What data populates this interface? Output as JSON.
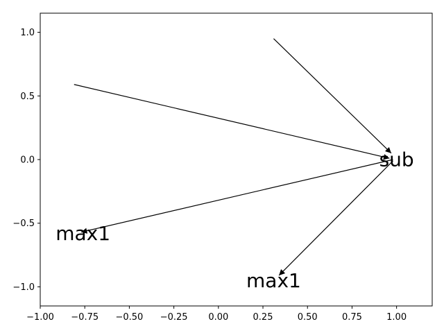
{
  "chart_data": {
    "type": "scatter",
    "xlim": [
      -1.0,
      1.2
    ],
    "ylim": [
      -1.15,
      1.15
    ],
    "x_ticks": [
      -1.0,
      -0.75,
      -0.5,
      -0.25,
      0.0,
      0.25,
      0.5,
      0.75,
      1.0
    ],
    "x_tick_labels": [
      "−1.00",
      "−0.75",
      "−0.50",
      "−0.25",
      "0.00",
      "0.25",
      "0.50",
      "0.75",
      "1.00"
    ],
    "y_ticks": [
      1.0,
      0.5,
      0.0,
      -0.5,
      -1.0
    ],
    "y_tick_labels": [
      "1.0",
      "0.5",
      "0.0",
      "−0.5",
      "−1.0"
    ],
    "grid": false,
    "nodes": [
      {
        "id": "sub",
        "label": "sub",
        "x": 1.0,
        "y": 0.0
      },
      {
        "id": "max1_a",
        "label": "max1",
        "x": -0.76,
        "y": -0.58
      },
      {
        "id": "max1_b",
        "label": "max1",
        "x": 0.31,
        "y": -0.95
      },
      {
        "id": "unlabeled_a",
        "label": "",
        "x": -0.81,
        "y": 0.59
      },
      {
        "id": "unlabeled_b",
        "label": "",
        "x": 0.31,
        "y": 0.95
      }
    ],
    "edges": [
      {
        "from": [
          -0.81,
          0.59
        ],
        "to": [
          0.96,
          0.01
        ]
      },
      {
        "from": [
          0.31,
          0.95
        ],
        "to": [
          0.97,
          0.05
        ]
      },
      {
        "from": [
          0.98,
          0.0
        ],
        "to": [
          -0.77,
          -0.57
        ]
      },
      {
        "from": [
          0.98,
          -0.01
        ],
        "to": [
          0.34,
          -0.91
        ]
      }
    ]
  }
}
